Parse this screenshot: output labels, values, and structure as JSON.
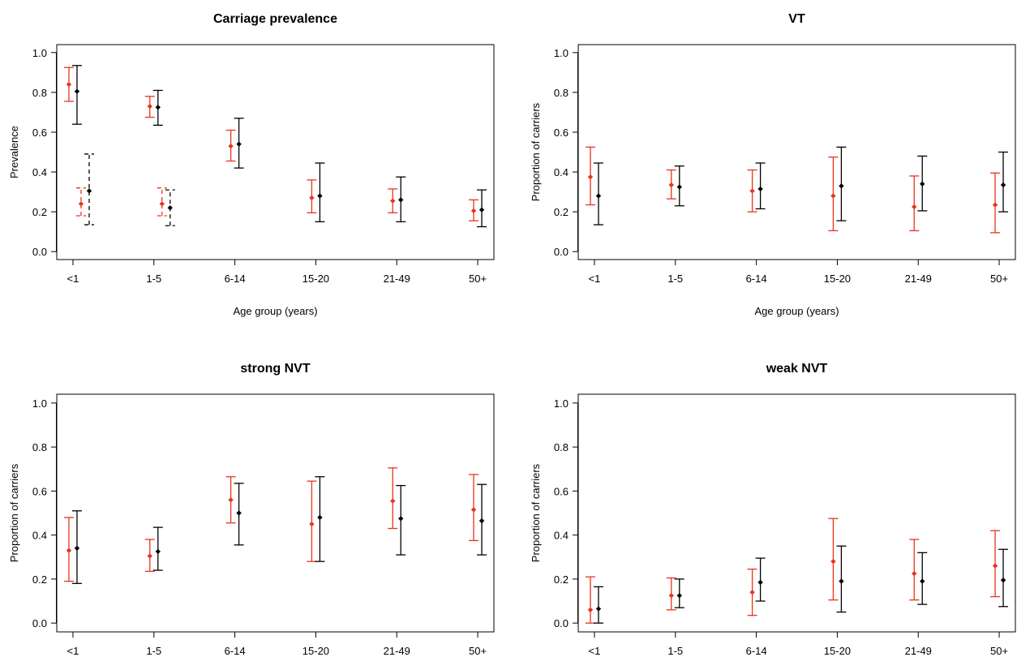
{
  "colors": {
    "red": "#E8341C",
    "black": "#000000"
  },
  "chart_data": [
    {
      "type": "scatter",
      "title": "Carriage prevalence",
      "xlabel": "Age group (years)",
      "ylabel": "Prevalence",
      "categories": [
        "<1",
        "1-5",
        "6-14",
        "15-20",
        "21-49",
        "50+"
      ],
      "ylim": [
        0,
        1
      ],
      "yticks": [
        "0.0",
        "0.2",
        "0.4",
        "0.6",
        "0.8",
        "1.0"
      ],
      "series": [
        {
          "color": "red",
          "values": [
            0.84,
            0.73,
            0.53,
            0.27,
            0.255,
            0.205
          ],
          "lower": [
            0.755,
            0.675,
            0.455,
            0.195,
            0.195,
            0.155
          ],
          "upper": [
            0.925,
            0.78,
            0.61,
            0.36,
            0.315,
            0.26
          ]
        },
        {
          "color": "black",
          "values": [
            0.805,
            0.725,
            0.54,
            0.28,
            0.26,
            0.21
          ],
          "lower": [
            0.64,
            0.635,
            0.42,
            0.15,
            0.15,
            0.125
          ],
          "upper": [
            0.935,
            0.81,
            0.67,
            0.445,
            0.375,
            0.31
          ]
        }
      ],
      "extra_dashed": [
        {
          "category": "<1",
          "color": "red",
          "value": 0.24,
          "lower": 0.18,
          "upper": 0.32
        },
        {
          "category": "<1",
          "color": "black",
          "value": 0.305,
          "lower": 0.135,
          "upper": 0.49
        },
        {
          "category": "1-5",
          "color": "red",
          "value": 0.24,
          "lower": 0.18,
          "upper": 0.32
        },
        {
          "category": "1-5",
          "color": "black",
          "value": 0.22,
          "lower": 0.13,
          "upper": 0.31
        }
      ]
    },
    {
      "type": "scatter",
      "title": "VT",
      "xlabel": "Age group (years)",
      "ylabel": "Proportion of carriers",
      "categories": [
        "<1",
        "1-5",
        "6-14",
        "15-20",
        "21-49",
        "50+"
      ],
      "ylim": [
        0,
        1
      ],
      "yticks": [
        "0.0",
        "0.2",
        "0.4",
        "0.6",
        "0.8",
        "1.0"
      ],
      "series": [
        {
          "color": "red",
          "values": [
            0.375,
            0.335,
            0.305,
            0.28,
            0.225,
            0.235
          ],
          "lower": [
            0.235,
            0.265,
            0.2,
            0.105,
            0.105,
            0.095
          ],
          "upper": [
            0.525,
            0.41,
            0.41,
            0.475,
            0.38,
            0.395
          ]
        },
        {
          "color": "black",
          "values": [
            0.28,
            0.325,
            0.315,
            0.33,
            0.34,
            0.335
          ],
          "lower": [
            0.135,
            0.23,
            0.215,
            0.155,
            0.205,
            0.2
          ],
          "upper": [
            0.445,
            0.43,
            0.445,
            0.525,
            0.48,
            0.5
          ]
        }
      ]
    },
    {
      "type": "scatter",
      "title": "strong NVT",
      "xlabel": "Age group (years)",
      "ylabel": "Proportion of carriers",
      "categories": [
        "<1",
        "1-5",
        "6-14",
        "15-20",
        "21-49",
        "50+"
      ],
      "ylim": [
        0,
        1
      ],
      "yticks": [
        "0.0",
        "0.2",
        "0.4",
        "0.6",
        "0.8",
        "1.0"
      ],
      "series": [
        {
          "color": "red",
          "values": [
            0.33,
            0.305,
            0.56,
            0.45,
            0.555,
            0.515
          ],
          "lower": [
            0.19,
            0.235,
            0.455,
            0.28,
            0.43,
            0.375
          ],
          "upper": [
            0.48,
            0.38,
            0.665,
            0.645,
            0.705,
            0.675
          ]
        },
        {
          "color": "black",
          "values": [
            0.34,
            0.325,
            0.5,
            0.48,
            0.475,
            0.465
          ],
          "lower": [
            0.18,
            0.24,
            0.355,
            0.28,
            0.31,
            0.31
          ],
          "upper": [
            0.51,
            0.435,
            0.635,
            0.665,
            0.625,
            0.63
          ]
        }
      ]
    },
    {
      "type": "scatter",
      "title": "weak NVT",
      "xlabel": "Age group (years)",
      "ylabel": "Proportion of carriers",
      "categories": [
        "<1",
        "1-5",
        "6-14",
        "15-20",
        "21-49",
        "50+"
      ],
      "ylim": [
        0,
        1
      ],
      "yticks": [
        "0.0",
        "0.2",
        "0.4",
        "0.6",
        "0.8",
        "1.0"
      ],
      "series": [
        {
          "color": "red",
          "values": [
            0.06,
            0.125,
            0.14,
            0.28,
            0.225,
            0.26
          ],
          "lower": [
            0.0,
            0.06,
            0.035,
            0.105,
            0.105,
            0.12
          ],
          "upper": [
            0.21,
            0.205,
            0.245,
            0.475,
            0.38,
            0.42
          ]
        },
        {
          "color": "black",
          "values": [
            0.065,
            0.125,
            0.185,
            0.19,
            0.19,
            0.195
          ],
          "lower": [
            0.0,
            0.07,
            0.1,
            0.05,
            0.085,
            0.075
          ],
          "upper": [
            0.165,
            0.2,
            0.295,
            0.35,
            0.32,
            0.335
          ]
        }
      ]
    }
  ]
}
